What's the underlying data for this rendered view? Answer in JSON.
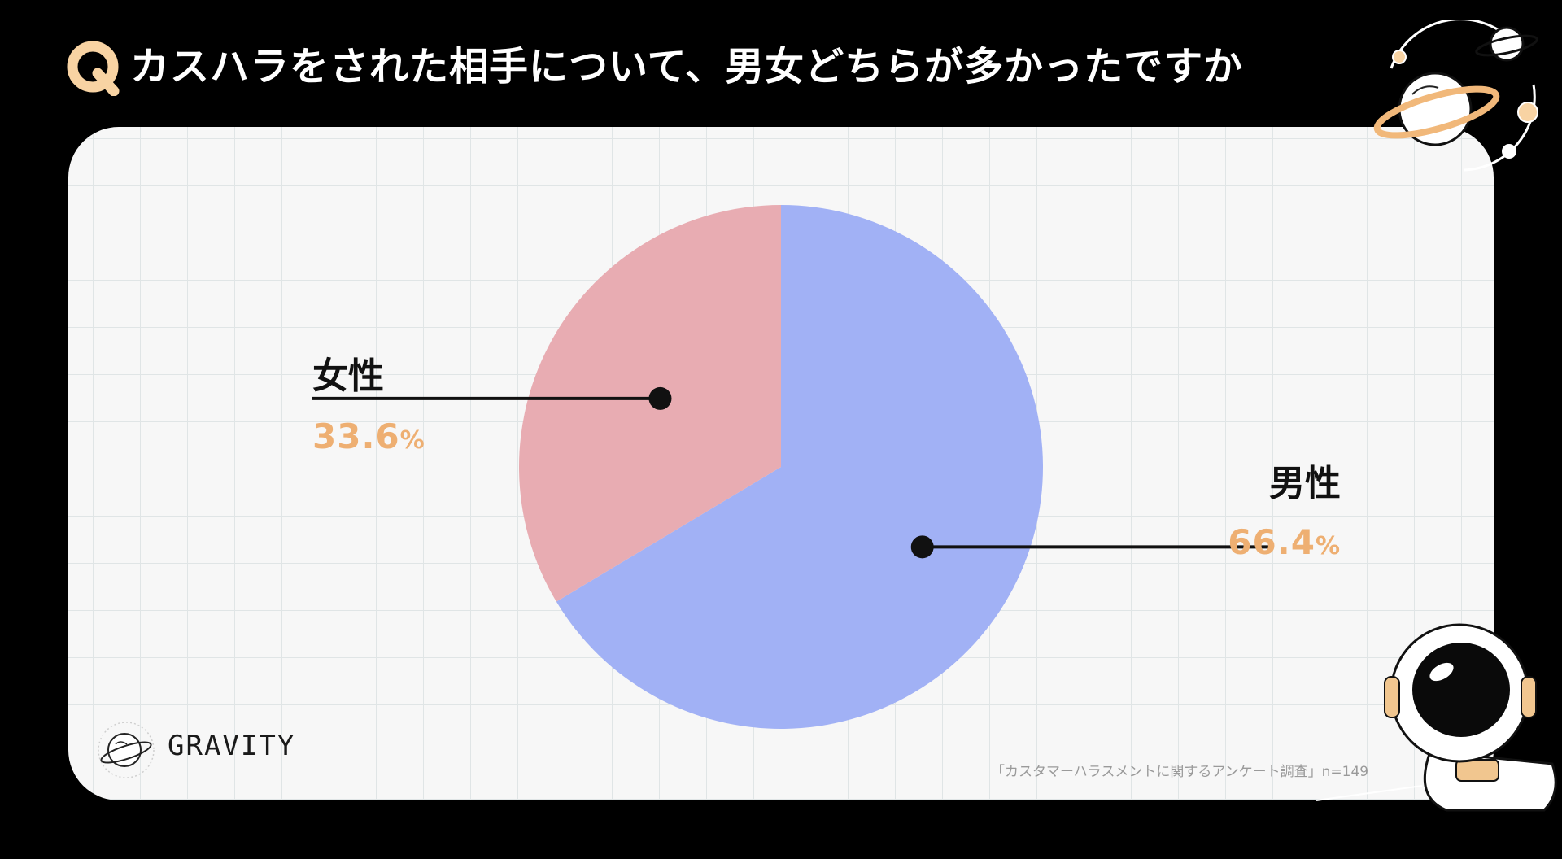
{
  "header": {
    "badge_letter": "Q",
    "title": "カスハラをされた相手について、男女どちらが多かったですか"
  },
  "colors": {
    "male": "#a1b1f5",
    "female": "#e8acb2",
    "percent_text": "#eeaf72",
    "badge": "#f8d3a3"
  },
  "chart_data": {
    "type": "pie",
    "title": "カスハラをされた相手について、男女どちらが多かったですか",
    "start_angle": "12 o'clock",
    "direction": "clockwise",
    "slices": [
      {
        "label": "男性",
        "value": 66.4,
        "display": "66.4",
        "unit": "%"
      },
      {
        "label": "女性",
        "value": 33.6,
        "display": "33.6",
        "unit": "%"
      }
    ]
  },
  "footer": {
    "brand_name": "GRAVITY",
    "source": "「カスタマーハラスメントに関するアンケート調査」n=149"
  },
  "decorations": {
    "top_right": "planets-icon",
    "bottom_right": "astronaut-icon",
    "brand": "planet-logo-icon"
  }
}
